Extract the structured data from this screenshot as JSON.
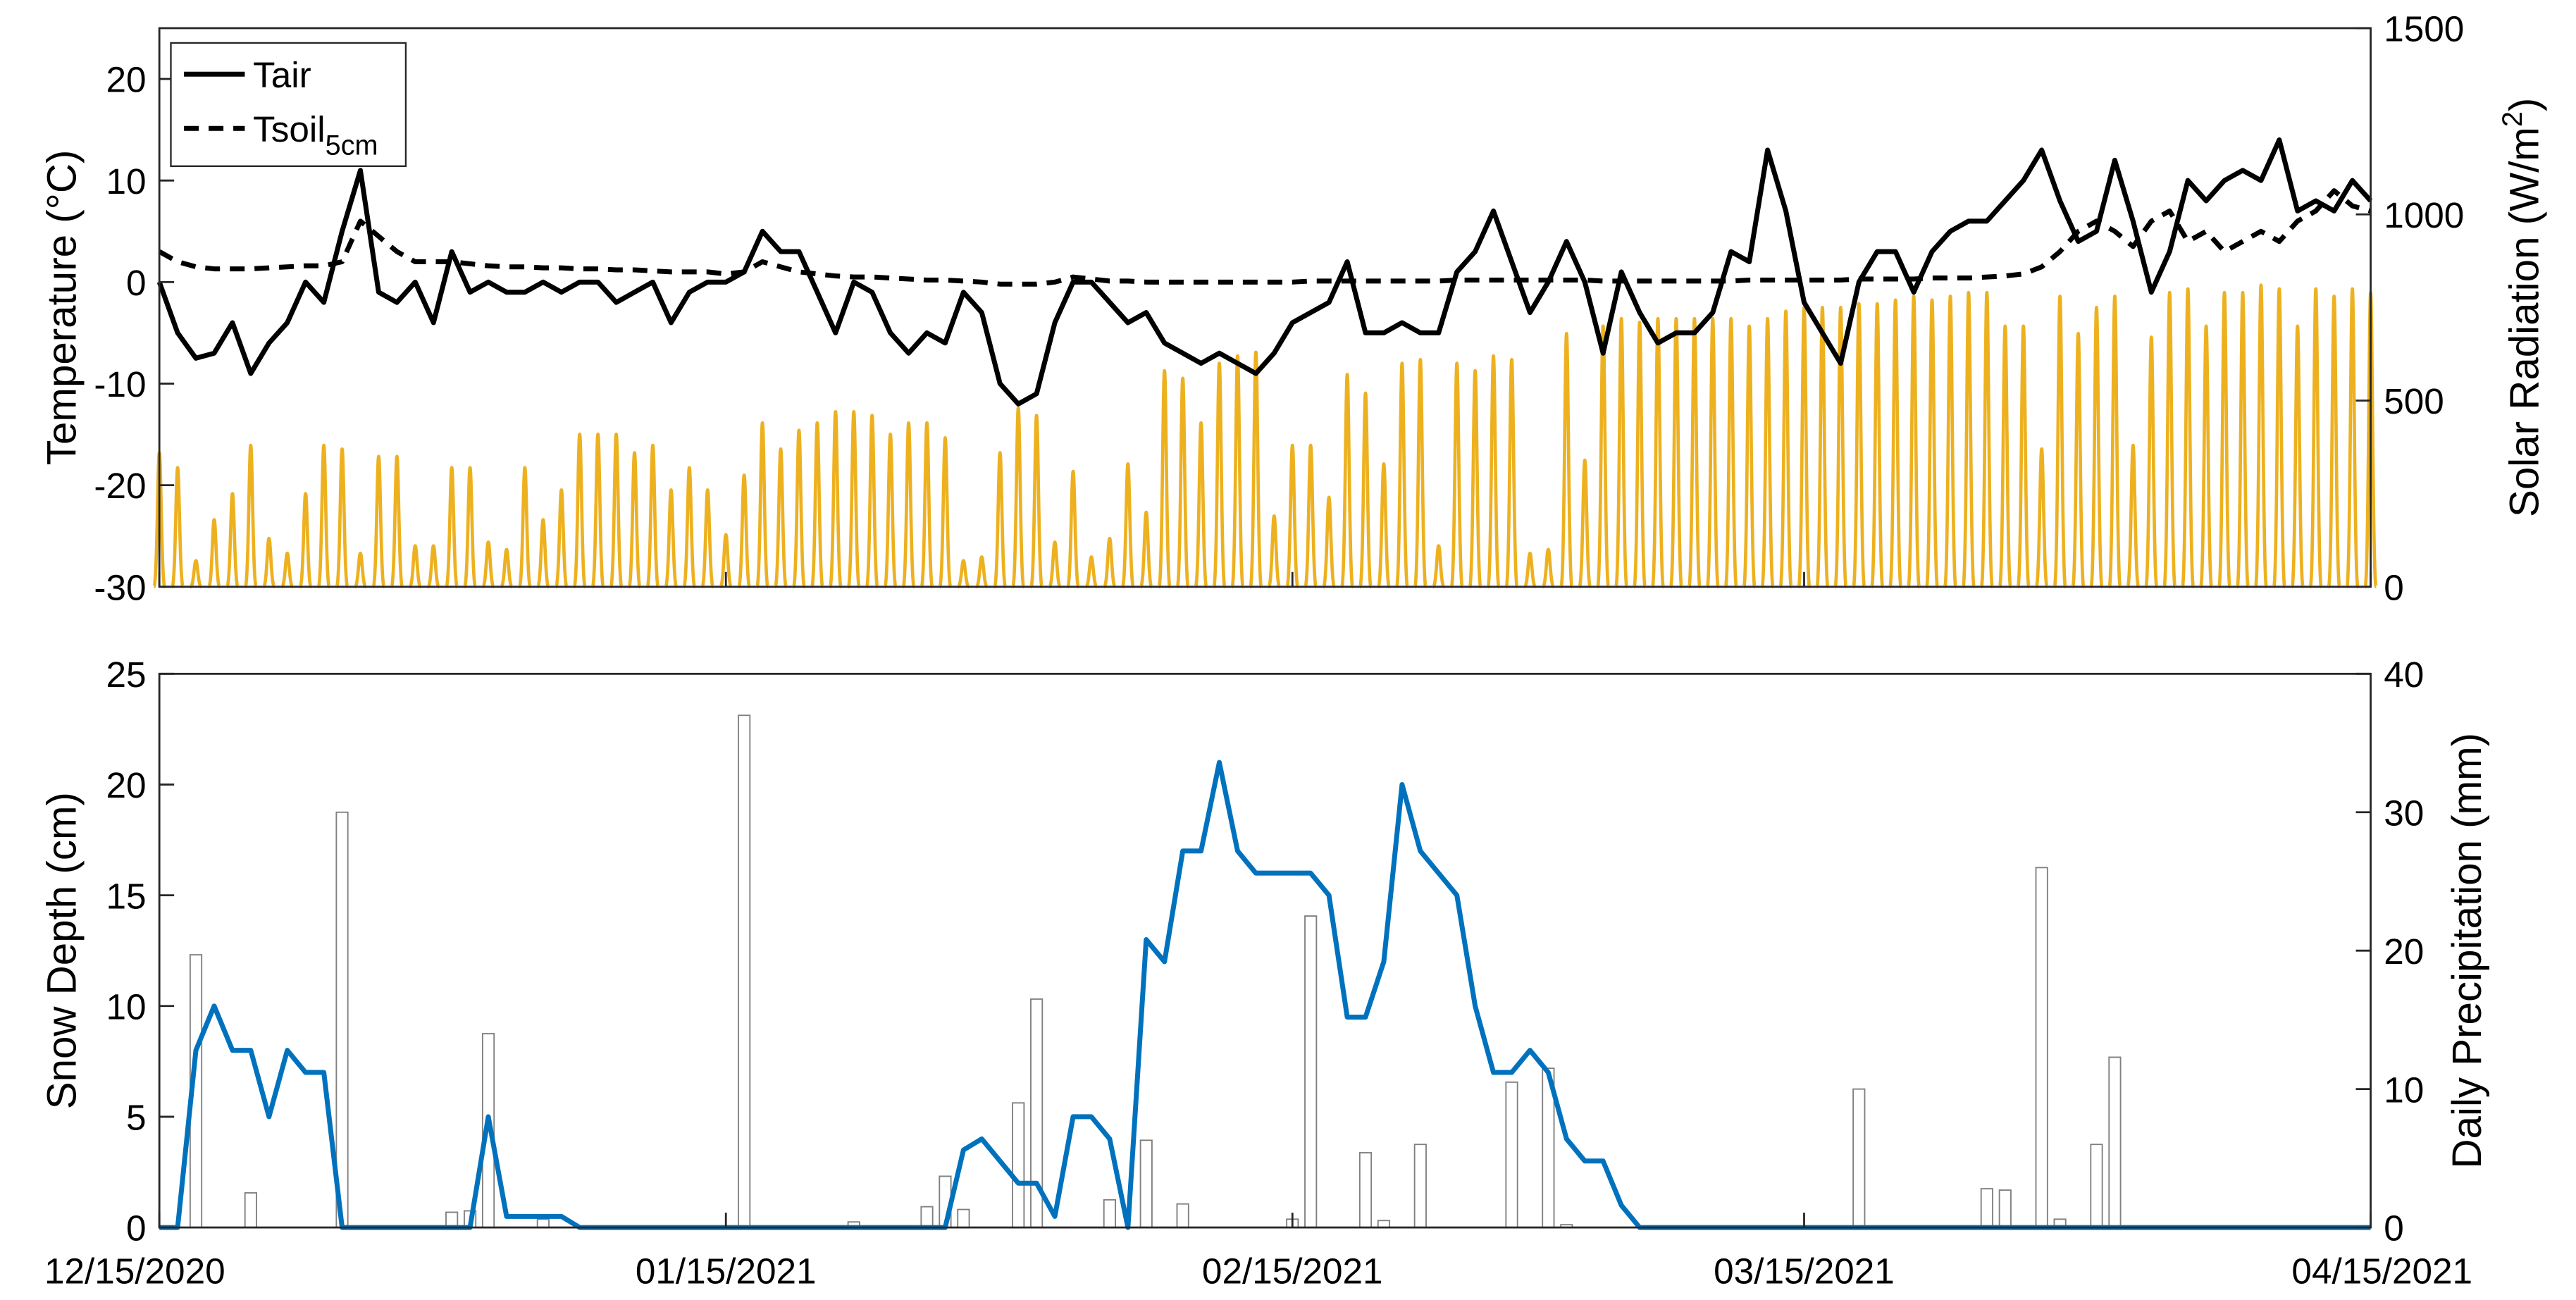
{
  "chart_data": [
    {
      "type": "line",
      "ylabel": "Temperature (°C)",
      "y2label": "Solar Radiation (W/m2)",
      "xlim": [
        "12/15/2020",
        "04/15/2021"
      ],
      "ylim": [
        -30,
        25
      ],
      "yticks": [
        -30,
        -20,
        -10,
        0,
        10,
        20
      ],
      "y2lim": [
        0,
        1500
      ],
      "y2ticks": [
        0,
        500,
        1000,
        1500
      ],
      "legend": "upper left",
      "y2color": "#EDB120",
      "x": [
        "12/15/2020",
        "12/16/2020",
        "12/17/2020",
        "12/18/2020",
        "12/19/2020",
        "12/20/2020",
        "12/21/2020",
        "12/22/2020",
        "12/23/2020",
        "12/24/2020",
        "12/25/2020",
        "12/26/2020",
        "12/27/2020",
        "12/28/2020",
        "12/29/2020",
        "12/30/2020",
        "12/31/2020",
        "01/01/2021",
        "01/02/2021",
        "01/03/2021",
        "01/04/2021",
        "01/05/2021",
        "01/06/2021",
        "01/07/2021",
        "01/08/2021",
        "01/09/2021",
        "01/10/2021",
        "01/11/2021",
        "01/12/2021",
        "01/13/2021",
        "01/14/2021",
        "01/15/2021",
        "01/16/2021",
        "01/17/2021",
        "01/18/2021",
        "01/19/2021",
        "01/20/2021",
        "01/21/2021",
        "01/22/2021",
        "01/23/2021",
        "01/24/2021",
        "01/25/2021",
        "01/26/2021",
        "01/27/2021",
        "01/28/2021",
        "01/29/2021",
        "01/30/2021",
        "01/31/2021",
        "02/01/2021",
        "02/02/2021",
        "02/03/2021",
        "02/04/2021",
        "02/05/2021",
        "02/06/2021",
        "02/07/2021",
        "02/08/2021",
        "02/09/2021",
        "02/10/2021",
        "02/11/2021",
        "02/12/2021",
        "02/13/2021",
        "02/14/2021",
        "02/15/2021",
        "02/16/2021",
        "02/17/2021",
        "02/18/2021",
        "02/19/2021",
        "02/20/2021",
        "02/21/2021",
        "02/22/2021",
        "02/23/2021",
        "02/24/2021",
        "02/25/2021",
        "02/26/2021",
        "02/27/2021",
        "02/28/2021",
        "03/01/2021",
        "03/02/2021",
        "03/03/2021",
        "03/04/2021",
        "03/05/2021",
        "03/06/2021",
        "03/07/2021",
        "03/08/2021",
        "03/09/2021",
        "03/10/2021",
        "03/11/2021",
        "03/12/2021",
        "03/13/2021",
        "03/14/2021",
        "03/15/2021",
        "03/16/2021",
        "03/17/2021",
        "03/18/2021",
        "03/19/2021",
        "03/20/2021",
        "03/21/2021",
        "03/22/2021",
        "03/23/2021",
        "03/24/2021",
        "03/25/2021",
        "03/26/2021",
        "03/27/2021",
        "03/28/2021",
        "03/29/2021",
        "03/30/2021",
        "03/31/2021",
        "04/01/2021",
        "04/02/2021",
        "04/03/2021",
        "04/04/2021",
        "04/05/2021",
        "04/06/2021",
        "04/07/2021",
        "04/08/2021",
        "04/09/2021",
        "04/10/2021",
        "04/11/2021",
        "04/12/2021",
        "04/13/2021",
        "04/14/2021",
        "04/15/2021"
      ],
      "series": [
        {
          "name": "Tair",
          "type": "line",
          "color": "#000000",
          "dashed": false,
          "values": [
            0,
            -5,
            -7.5,
            -7,
            -4,
            -9,
            -6,
            -4,
            0,
            -2,
            5,
            11,
            -1,
            -2,
            0,
            -4,
            3,
            -1,
            0,
            -1,
            -1,
            0,
            -1,
            0,
            0,
            -2,
            -1,
            0,
            -4,
            -1,
            0,
            0,
            1,
            5,
            3,
            3,
            -1,
            -5,
            0,
            -1,
            -5,
            -7,
            -5,
            -6,
            -1,
            -3,
            -10,
            -12,
            -11,
            -4,
            0,
            0,
            -2,
            -4,
            -3,
            -6,
            -7,
            -8,
            -7,
            -8,
            -9,
            -7,
            -4,
            -3,
            -2,
            2,
            -5,
            -5,
            -4,
            -5,
            -5,
            1,
            3,
            7,
            2,
            -3,
            0,
            4,
            0,
            -7,
            1,
            -3,
            -6,
            -5,
            -5,
            -3,
            3,
            2,
            13,
            7,
            -2,
            -5,
            -8,
            0,
            3,
            3,
            -1,
            3,
            5,
            6,
            6,
            8,
            10,
            13,
            8,
            4,
            5,
            12,
            6,
            -1,
            3,
            10,
            8,
            10,
            11,
            10,
            14,
            7,
            8,
            7,
            10,
            8
          ]
        },
        {
          "name": "Tsoil5cm",
          "type": "line",
          "color": "#000000",
          "dashed": true,
          "values": [
            3,
            2,
            1.5,
            1.3,
            1.3,
            1.3,
            1.4,
            1.5,
            1.6,
            1.6,
            2,
            6,
            4.5,
            3,
            2,
            2,
            2,
            1.8,
            1.6,
            1.5,
            1.5,
            1.4,
            1.4,
            1.3,
            1.3,
            1.2,
            1.2,
            1.1,
            1,
            1,
            1,
            0.8,
            1,
            2,
            1.5,
            1,
            0.8,
            0.6,
            0.5,
            0.5,
            0.4,
            0.3,
            0.2,
            0.2,
            0.1,
            0,
            -0.2,
            -0.2,
            -0.2,
            0,
            0.5,
            0.3,
            0.1,
            0.1,
            0,
            0,
            0,
            0,
            0,
            0,
            0,
            0,
            0,
            0.1,
            0.1,
            0.1,
            0.1,
            0.1,
            0.1,
            0.1,
            0.1,
            0.2,
            0.2,
            0.2,
            0.2,
            0.2,
            0.2,
            0.2,
            0.2,
            0.1,
            0.1,
            0.1,
            0.1,
            0.1,
            0.1,
            0.1,
            0.1,
            0.2,
            0.2,
            0.2,
            0.2,
            0.2,
            0.2,
            0.3,
            0.3,
            0.3,
            0.3,
            0.4,
            0.4,
            0.4,
            0.5,
            0.6,
            0.8,
            1.5,
            3,
            5,
            6,
            5,
            3.5,
            6,
            7,
            4,
            5,
            3,
            4,
            5,
            4,
            6,
            7,
            9,
            7.5,
            7
          ]
        },
        {
          "type": "spike",
          "axis": "y2",
          "color": "#EDB120",
          "values": [
            360,
            320,
            70,
            180,
            250,
            380,
            130,
            90,
            250,
            380,
            370,
            90,
            350,
            350,
            110,
            110,
            320,
            320,
            120,
            100,
            320,
            180,
            260,
            410,
            410,
            410,
            360,
            380,
            260,
            320,
            260,
            140,
            300,
            440,
            370,
            420,
            440,
            470,
            470,
            460,
            410,
            440,
            440,
            400,
            70,
            80,
            360,
            480,
            460,
            120,
            310,
            80,
            130,
            330,
            200,
            580,
            560,
            440,
            600,
            620,
            630,
            190,
            380,
            380,
            240,
            570,
            520,
            330,
            600,
            610,
            110,
            600,
            580,
            620,
            610,
            90,
            100,
            680,
            340,
            700,
            720,
            710,
            720,
            720,
            720,
            720,
            720,
            700,
            720,
            740,
            750,
            750,
            750,
            760,
            760,
            770,
            780,
            770,
            780,
            790,
            790,
            700,
            700,
            370,
            780,
            680,
            750,
            780,
            380,
            670,
            790,
            800,
            700,
            790,
            790,
            810,
            800,
            700,
            800,
            780,
            800,
            790
          ]
        }
      ]
    },
    {
      "type": "line",
      "ylabel": "Snow Depth (cm)",
      "y2label": "Daily Precipitation (mm)",
      "xlim": [
        "12/15/2020",
        "04/15/2021"
      ],
      "xticks": [
        "12/15/2020",
        "01/15/2021",
        "02/15/2021",
        "03/15/2021",
        "04/15/2021"
      ],
      "ylim": [
        0,
        25
      ],
      "yticks": [
        0,
        5,
        10,
        15,
        20,
        25
      ],
      "y2lim": [
        0,
        40
      ],
      "y2ticks": [
        0,
        10,
        20,
        30,
        40
      ],
      "ycolor": "#0072BD",
      "x": [
        "12/15/2020",
        "12/16/2020",
        "12/17/2020",
        "12/18/2020",
        "12/19/2020",
        "12/20/2020",
        "12/21/2020",
        "12/22/2020",
        "12/23/2020",
        "12/24/2020",
        "12/25/2020",
        "12/26/2020",
        "12/27/2020",
        "12/28/2020",
        "12/29/2020",
        "12/30/2020",
        "12/31/2020",
        "01/01/2021",
        "01/02/2021",
        "01/03/2021",
        "01/04/2021",
        "01/05/2021",
        "01/06/2021",
        "01/07/2021",
        "01/08/2021",
        "01/09/2021",
        "01/10/2021",
        "01/11/2021",
        "01/12/2021",
        "01/13/2021",
        "01/14/2021",
        "01/15/2021",
        "01/16/2021",
        "01/17/2021",
        "01/18/2021",
        "01/19/2021",
        "01/20/2021",
        "01/21/2021",
        "01/22/2021",
        "01/23/2021",
        "01/24/2021",
        "01/25/2021",
        "01/26/2021",
        "01/27/2021",
        "01/28/2021",
        "01/29/2021",
        "01/30/2021",
        "01/31/2021",
        "02/01/2021",
        "02/02/2021",
        "02/03/2021",
        "02/04/2021",
        "02/05/2021",
        "02/06/2021",
        "02/07/2021",
        "02/08/2021",
        "02/09/2021",
        "02/10/2021",
        "02/11/2021",
        "02/12/2021",
        "02/13/2021",
        "02/14/2021",
        "02/15/2021",
        "02/16/2021",
        "02/17/2021",
        "02/18/2021",
        "02/19/2021",
        "02/20/2021",
        "02/21/2021",
        "02/22/2021",
        "02/23/2021",
        "02/24/2021",
        "02/25/2021",
        "02/26/2021",
        "02/27/2021",
        "02/28/2021",
        "03/01/2021",
        "03/02/2021",
        "03/03/2021",
        "03/04/2021",
        "03/05/2021",
        "03/06/2021",
        "03/07/2021",
        "03/08/2021",
        "03/09/2021",
        "03/10/2021",
        "03/11/2021",
        "03/12/2021",
        "03/13/2021",
        "03/14/2021",
        "03/15/2021",
        "03/16/2021",
        "03/17/2021",
        "03/18/2021",
        "03/19/2021",
        "03/20/2021",
        "03/21/2021",
        "03/22/2021",
        "03/23/2021",
        "03/24/2021",
        "03/25/2021",
        "03/26/2021",
        "03/27/2021",
        "03/28/2021",
        "03/29/2021",
        "03/30/2021",
        "03/31/2021",
        "04/01/2021",
        "04/02/2021",
        "04/03/2021",
        "04/04/2021",
        "04/05/2021",
        "04/06/2021",
        "04/07/2021",
        "04/08/2021",
        "04/09/2021",
        "04/10/2021",
        "04/11/2021",
        "04/12/2021",
        "04/13/2021",
        "04/14/2021",
        "04/15/2021"
      ],
      "series": [
        {
          "type": "bar",
          "axis": "y2",
          "color": "#808080",
          "values": [
            0,
            0,
            19.7,
            0,
            0,
            2.5,
            0,
            0,
            0,
            0,
            30,
            0,
            0,
            0,
            0,
            0,
            1.1,
            1.2,
            14,
            0,
            0,
            0.6,
            0,
            0,
            0,
            0,
            0,
            0,
            0,
            0,
            0,
            0,
            37,
            0,
            0,
            0,
            0,
            0,
            0.4,
            0,
            0,
            0,
            1.5,
            3.7,
            1.3,
            0,
            0,
            9,
            16.5,
            0,
            0,
            0,
            2,
            0,
            6.3,
            0,
            1.7,
            0,
            0,
            0,
            0,
            0,
            0.6,
            22.5,
            0,
            0,
            5.4,
            0.5,
            0,
            6,
            0,
            0,
            0,
            0,
            10.5,
            0,
            11.5,
            0.2,
            0,
            0,
            0,
            0,
            0,
            0,
            0,
            0,
            0,
            0,
            0,
            0,
            0,
            0,
            0,
            10,
            0,
            0,
            0,
            0,
            0,
            0,
            2.8,
            2.7,
            0,
            26,
            0.6,
            0,
            6,
            12.3,
            0,
            0,
            0,
            0,
            0,
            0,
            0,
            0,
            0,
            0,
            0,
            0,
            0,
            0
          ]
        },
        {
          "type": "line",
          "color": "#0072BD",
          "dashed": false,
          "values": [
            0,
            0,
            8,
            10,
            8,
            8,
            5,
            8,
            7,
            7,
            0,
            0,
            0,
            0,
            0,
            0,
            0,
            0,
            5,
            0.5,
            0.5,
            0.5,
            0.5,
            0,
            0,
            0,
            0,
            0,
            0,
            0,
            0,
            0,
            0,
            0,
            0,
            0,
            0,
            0,
            0,
            0,
            0,
            0,
            0,
            0,
            3.5,
            4,
            3,
            2,
            2,
            0.5,
            5,
            5,
            4,
            0,
            13,
            12,
            17,
            17,
            21,
            17,
            16,
            16,
            16,
            16,
            15,
            9.5,
            9.5,
            12,
            20,
            17,
            16,
            15,
            10,
            7,
            7,
            8,
            7,
            4,
            3,
            3,
            1,
            0,
            0,
            0,
            0,
            0,
            0,
            0,
            0,
            0,
            0,
            0,
            0,
            0,
            0,
            0,
            0,
            0,
            0,
            0,
            0,
            0,
            0,
            0,
            0,
            0,
            0,
            0,
            0,
            0,
            0,
            0,
            0,
            0,
            0,
            0,
            0,
            0,
            0,
            0,
            0,
            0
          ]
        }
      ]
    }
  ]
}
